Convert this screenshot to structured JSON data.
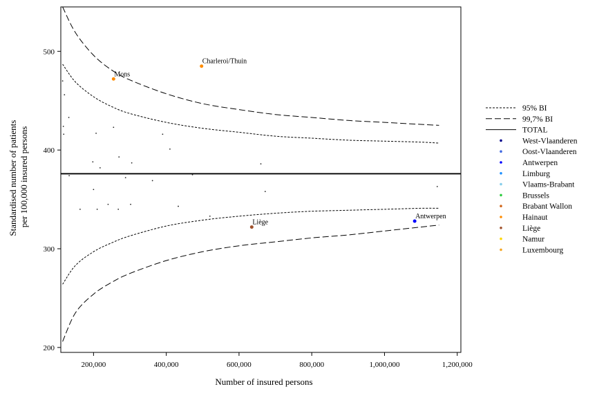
{
  "chart_data": {
    "type": "scatter",
    "xlabel": "Number of insured persons",
    "ylabel": "Standardised number of patients per 100,000 insured persons",
    "ylabel_lines": [
      "Standardised number of patients",
      "per 100,000 insured persons"
    ],
    "xlim": [
      110000,
      1210000
    ],
    "ylim": [
      195,
      545
    ],
    "x_ticks": [
      200000,
      400000,
      600000,
      800000,
      1000000,
      1200000
    ],
    "x_tick_labels": [
      "200,000",
      "400,000",
      "600,000",
      "800,000",
      "1,000,000",
      "1,200,000"
    ],
    "y_ticks": [
      200,
      300,
      400,
      500
    ],
    "y_tick_labels": [
      "200",
      "300",
      "400",
      "500"
    ],
    "total": 376,
    "grid": false,
    "legend_position": "right",
    "limits": {
      "x": [
        115000,
        150000,
        200000,
        250000,
        300000,
        400000,
        500000,
        600000,
        700000,
        800000,
        900000,
        1000000,
        1100000,
        1150000
      ],
      "upper_997": [
        545,
        519,
        496,
        481,
        471,
        457,
        447,
        441,
        436,
        433,
        430,
        428,
        426,
        425
      ],
      "upper_95": [
        487,
        469,
        454,
        444,
        437,
        428,
        422,
        418,
        414,
        412,
        410,
        409,
        408,
        407
      ],
      "lower_95": [
        264,
        283,
        297,
        306,
        313,
        323,
        329,
        333,
        336,
        338,
        339,
        340,
        341,
        341
      ],
      "lower_997": [
        206,
        235,
        254,
        266,
        275,
        288,
        297,
        303,
        307,
        311,
        314,
        318,
        322,
        324
      ]
    },
    "legend": [
      {
        "label": "95% BI",
        "kind": "dotted"
      },
      {
        "label": "99,7% BI",
        "kind": "dashed"
      },
      {
        "label": "TOTAL",
        "kind": "solid"
      },
      {
        "label": "West-Vlaanderen",
        "kind": "dot",
        "color": "#00008b"
      },
      {
        "label": "Oost-Vlaanderen",
        "kind": "dot",
        "color": "#4169e1"
      },
      {
        "label": "Antwerpen",
        "kind": "dot",
        "color": "#0000ff"
      },
      {
        "label": "Limburg",
        "kind": "dot",
        "color": "#1e90ff"
      },
      {
        "label": "Vlaams-Brabant",
        "kind": "dot",
        "color": "#87ceeb"
      },
      {
        "label": "Brussels",
        "kind": "dot",
        "color": "#2ecc40"
      },
      {
        "label": "Brabant Wallon",
        "kind": "dot",
        "color": "#d2691e"
      },
      {
        "label": "Hainaut",
        "kind": "dot",
        "color": "#ff8c00"
      },
      {
        "label": "Liège",
        "kind": "dot",
        "color": "#a0522d"
      },
      {
        "label": "Namur",
        "kind": "dot",
        "color": "#ffd700"
      },
      {
        "label": "Luxembourg",
        "kind": "dot",
        "color": "#f5a623"
      }
    ],
    "labeled_points": [
      {
        "label": "Charleroi/Thuin",
        "x": 497000,
        "y": 485,
        "color": "#ff8c00"
      },
      {
        "label": "Mons",
        "x": 255000,
        "y": 472,
        "color": "#ff8c00"
      },
      {
        "label": "Liège",
        "x": 635000,
        "y": 322,
        "color": "#a0522d"
      },
      {
        "label": "Antwerpen",
        "x": 1083000,
        "y": 328,
        "color": "#0000ff"
      }
    ],
    "points": [
      {
        "x": 115000,
        "y": 470
      },
      {
        "x": 120000,
        "y": 456
      },
      {
        "x": 132000,
        "y": 433
      },
      {
        "x": 117000,
        "y": 424
      },
      {
        "x": 118000,
        "y": 416
      },
      {
        "x": 133000,
        "y": 374
      },
      {
        "x": 198000,
        "y": 388
      },
      {
        "x": 207000,
        "y": 417
      },
      {
        "x": 255000,
        "y": 423
      },
      {
        "x": 218000,
        "y": 382
      },
      {
        "x": 270000,
        "y": 393
      },
      {
        "x": 288000,
        "y": 372
      },
      {
        "x": 305000,
        "y": 387
      },
      {
        "x": 390000,
        "y": 416
      },
      {
        "x": 410000,
        "y": 401
      },
      {
        "x": 362000,
        "y": 369
      },
      {
        "x": 472000,
        "y": 375
      },
      {
        "x": 660000,
        "y": 386
      },
      {
        "x": 200000,
        "y": 360
      },
      {
        "x": 163000,
        "y": 340
      },
      {
        "x": 210000,
        "y": 340
      },
      {
        "x": 240000,
        "y": 345
      },
      {
        "x": 268000,
        "y": 340
      },
      {
        "x": 302000,
        "y": 345
      },
      {
        "x": 433000,
        "y": 343
      },
      {
        "x": 520000,
        "y": 333
      },
      {
        "x": 672000,
        "y": 358
      },
      {
        "x": 1145000,
        "y": 363
      }
    ]
  }
}
